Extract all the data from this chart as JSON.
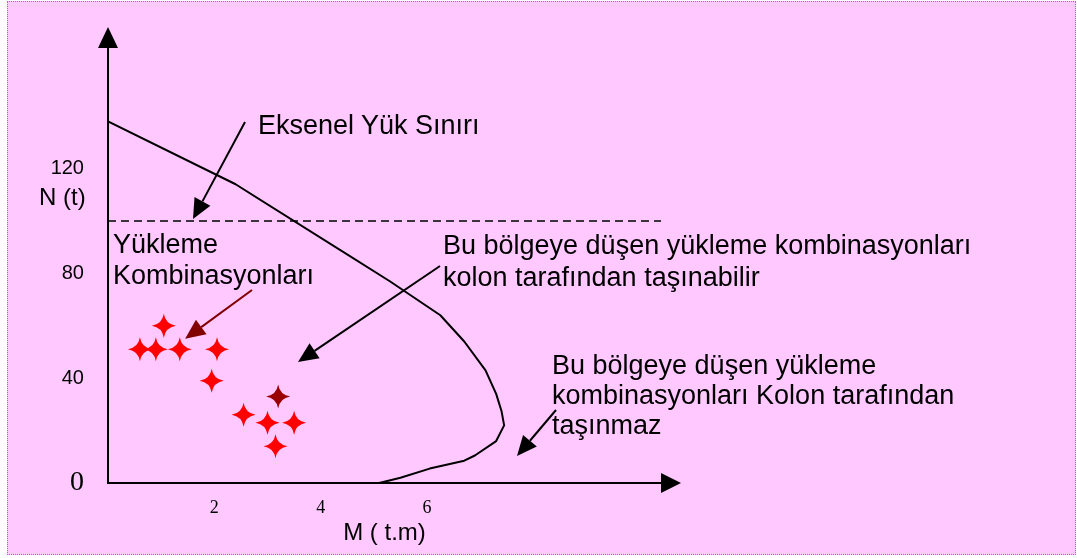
{
  "chart_data": {
    "type": "line",
    "xlabel": "M ( t.m)",
    "ylabel": "N (t)",
    "xlim": [
      0,
      10.4
    ],
    "ylim": [
      0,
      166
    ],
    "xticks": [
      2,
      4,
      6
    ],
    "yticks": [
      0,
      40,
      80,
      120
    ],
    "series": [
      {
        "color": "#000000",
        "marker": "none",
        "x": [
          0,
          2.4,
          5.3,
          6.25,
          6.7,
          7.1,
          7.3,
          7.4,
          7.45,
          7.3,
          6.9,
          6.7,
          6.05,
          5.5,
          5.1
        ],
        "values": [
          138,
          114,
          77,
          64,
          54,
          43,
          34,
          27.5,
          22,
          16,
          10.5,
          8.5,
          5.5,
          2,
          0
        ]
      },
      {
        "type": "scatter",
        "marker": "star",
        "colors": [
          "#ff0000",
          "#ff0000",
          "#ff0000",
          "#ff0000",
          "#ff0000",
          "#ff0000",
          "#9b0000",
          "#ff0000",
          "#ff0000",
          "#ff0000",
          "#ff0000"
        ],
        "x": [
          1.05,
          0.6,
          0.9,
          1.35,
          2.05,
          1.95,
          3.2,
          2.55,
          3.0,
          3.5,
          3.15
        ],
        "values": [
          60,
          51,
          51,
          51,
          51,
          39,
          33,
          26,
          23,
          23,
          14
        ]
      }
    ],
    "ref_lines": [
      {
        "axis": "y",
        "value": 100,
        "color": "#000000",
        "line_style": "dashed"
      }
    ],
    "annotations": [
      "Eksenel Yük Sınırı",
      {
        "text": "Yükleme Kombinasyonları",
        "x": 1.45,
        "y": 55
      },
      "Bu bölgeye düşen yükleme kombinasyonları kolon tarafından taşınabilir",
      "Bu bölgeye düşen yükleme kombinasyonları Kolon tarafından taşınmaz"
    ]
  }
}
